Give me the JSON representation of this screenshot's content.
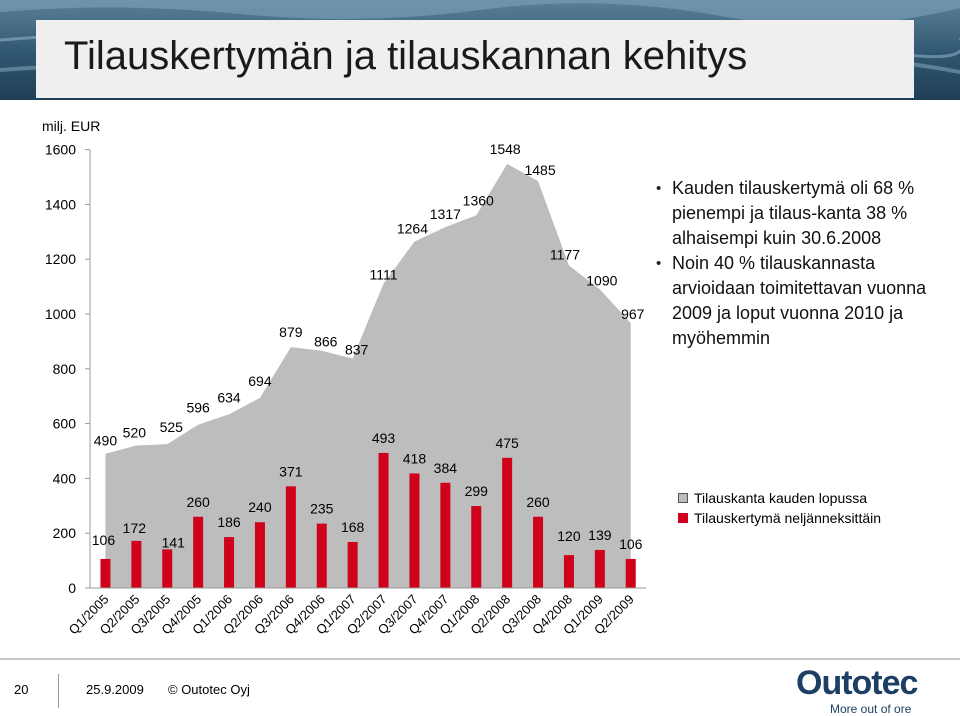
{
  "title": "Tilauskertymän ja tilauskannan kehitys",
  "unit_label": "milj. EUR",
  "bullets": [
    "Kauden tilauskertymä oli 68 % pienempi ja tilaus-kanta 38 % alhaisempi kuin 30.6.2008",
    "Noin 40 % tilauskannasta arvioidaan toimitettavan vuonna 2009 ja loput vuonna 2010 ja myöhemmin"
  ],
  "chart_data": {
    "type": "area",
    "categories": [
      "Q1/2005",
      "Q2/2005",
      "Q3/2005",
      "Q4/2005",
      "Q1/2006",
      "Q2/2006",
      "Q3/2006",
      "Q4/2006",
      "Q1/2007",
      "Q2/2007",
      "Q3/2007",
      "Q4/2007",
      "Q1/2008",
      "Q2/2008",
      "Q3/2008",
      "Q4/2008",
      "Q1/2009",
      "Q2/2009"
    ],
    "ylim": [
      0,
      1600
    ],
    "yticks": [
      0,
      200,
      400,
      600,
      800,
      1000,
      1200,
      1400,
      1600
    ],
    "legend_position": "right",
    "series": [
      {
        "name": "Tilauskanta kauden lopussa",
        "type": "area",
        "color": "#bdbdbd",
        "values": [
          490,
          520,
          525,
          596,
          634,
          694,
          879,
          866,
          837,
          1111,
          1264,
          1317,
          1360,
          1548,
          1485,
          1177,
          1090,
          967
        ]
      },
      {
        "name": "Tilauskertymä neljänneksittäin",
        "type": "bar",
        "color": "#d0021b",
        "values": [
          106,
          172,
          141,
          260,
          186,
          240,
          371,
          235,
          168,
          493,
          418,
          384,
          299,
          475,
          260,
          120,
          139,
          106
        ]
      }
    ]
  },
  "footer": {
    "page_number": "20",
    "date": "25.9.2009",
    "copyright": "© Outotec Oyj"
  },
  "logo": {
    "name": "Outotec",
    "slogan": "More out of ore"
  },
  "colors": {
    "accent": "#d0021b",
    "area": "#bdbdbd",
    "brand": "#1d3f63"
  }
}
